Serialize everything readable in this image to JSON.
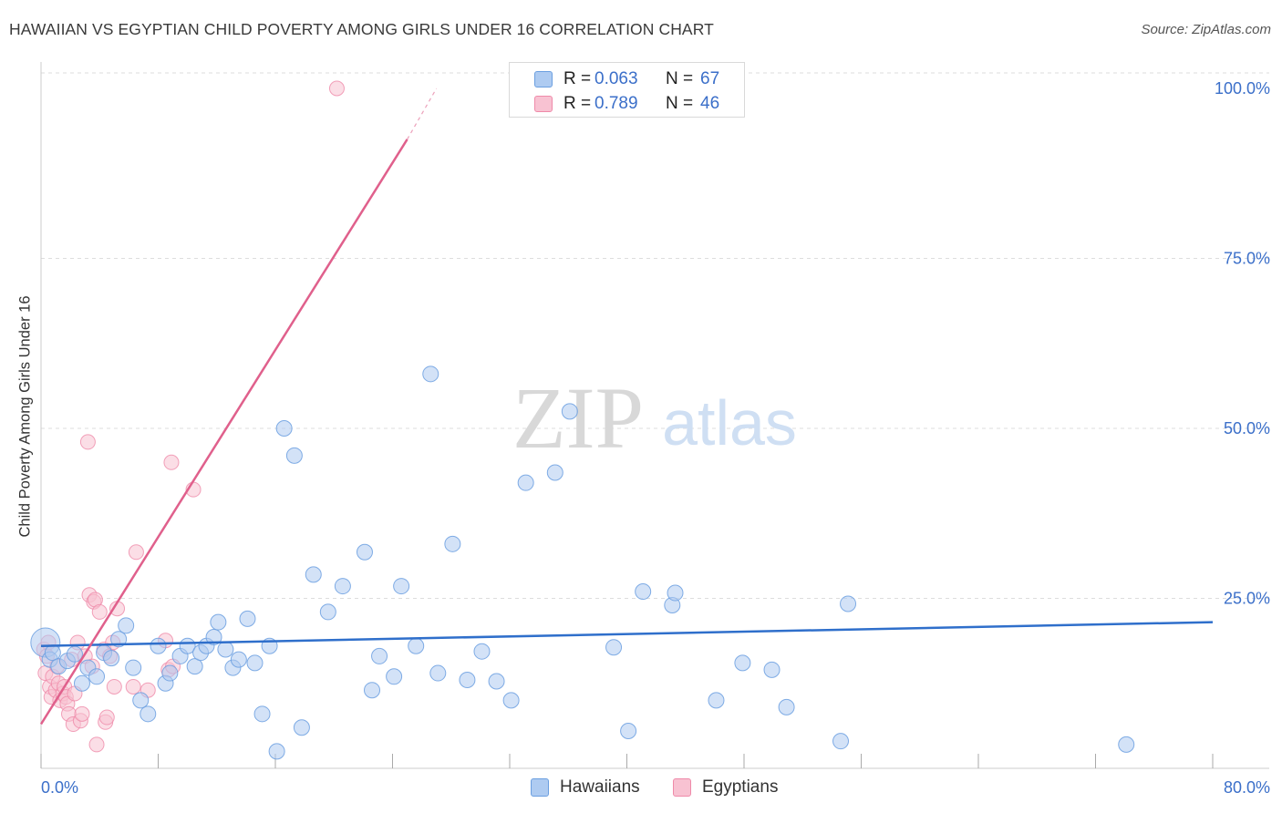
{
  "header": {
    "title": "HAWAIIAN VS EGYPTIAN CHILD POVERTY AMONG GIRLS UNDER 16 CORRELATION CHART",
    "source": "Source: ZipAtlas.com"
  },
  "watermark": {
    "zip": "ZIP",
    "atlas": "atlas"
  },
  "legend": {
    "rows": [
      {
        "r_label": "R =",
        "r_value": "0.063",
        "n_label": "N =",
        "n_value": "67",
        "color": "#8fb4ea"
      },
      {
        "r_label": "R =",
        "r_value": "0.789",
        "n_label": "N =",
        "n_value": "46",
        "color": "#f4a3bc"
      }
    ]
  },
  "bottom_legend": {
    "series_a": "Hawaiians",
    "series_b": "Egyptians"
  },
  "colors": {
    "hawaiians_fill": "#aecbf1",
    "hawaiians_stroke": "#6b9fe0",
    "hawaiians_line": "#2f6fcb",
    "egyptians_fill": "#f8c2d2",
    "egyptians_stroke": "#ef8aa9",
    "egyptians_line": "#e0608c",
    "tick_label": "#3b6fc9",
    "grid": "#dddddd"
  },
  "chart_data": {
    "type": "scatter",
    "title": "HAWAIIAN VS EGYPTIAN CHILD POVERTY AMONG GIRLS UNDER 16 CORRELATION CHART",
    "xlabel": "",
    "ylabel": "Child Poverty Among Girls Under 16",
    "xlim": [
      0,
      80
    ],
    "ylim": [
      0,
      100
    ],
    "x_tick_labels": [
      "0.0%",
      "80.0%"
    ],
    "y_ticks": [
      25,
      50,
      75,
      100
    ],
    "y_tick_labels": [
      "25.0%",
      "50.0%",
      "75.0%",
      "100.0%"
    ],
    "grid": "horizontal dashed",
    "legend_position": "top-center",
    "series": [
      {
        "name": "Hawaiians",
        "r": 0.063,
        "n": 67,
        "trend": {
          "x": [
            0,
            80
          ],
          "y": [
            18.0,
            21.5
          ]
        },
        "points": [
          [
            0.3,
            18.5
          ],
          [
            0.6,
            16.0
          ],
          [
            0.8,
            17.0
          ],
          [
            1.2,
            15.0
          ],
          [
            1.8,
            15.8
          ],
          [
            2.3,
            16.8
          ],
          [
            2.8,
            12.5
          ],
          [
            3.2,
            14.8
          ],
          [
            3.8,
            13.5
          ],
          [
            4.3,
            17.0
          ],
          [
            4.8,
            16.2
          ],
          [
            5.3,
            19.0
          ],
          [
            5.8,
            21.0
          ],
          [
            6.3,
            14.8
          ],
          [
            6.8,
            10.0
          ],
          [
            7.3,
            8.0
          ],
          [
            8.0,
            18.0
          ],
          [
            8.5,
            12.5
          ],
          [
            8.8,
            14.0
          ],
          [
            9.5,
            16.5
          ],
          [
            10.0,
            18.0
          ],
          [
            10.5,
            15.0
          ],
          [
            10.9,
            17.0
          ],
          [
            11.3,
            18.0
          ],
          [
            11.8,
            19.3
          ],
          [
            12.1,
            21.5
          ],
          [
            12.6,
            17.5
          ],
          [
            13.1,
            14.8
          ],
          [
            13.5,
            16.0
          ],
          [
            14.1,
            22.0
          ],
          [
            14.6,
            15.5
          ],
          [
            15.1,
            8.0
          ],
          [
            15.6,
            18.0
          ],
          [
            16.1,
            2.5
          ],
          [
            16.6,
            50.0
          ],
          [
            17.3,
            46.0
          ],
          [
            17.8,
            6.0
          ],
          [
            18.6,
            28.5
          ],
          [
            19.6,
            23.0
          ],
          [
            20.6,
            26.8
          ],
          [
            22.1,
            31.8
          ],
          [
            22.6,
            11.5
          ],
          [
            23.1,
            16.5
          ],
          [
            24.1,
            13.5
          ],
          [
            24.6,
            26.8
          ],
          [
            25.6,
            18.0
          ],
          [
            26.6,
            58.0
          ],
          [
            27.1,
            14.0
          ],
          [
            28.1,
            33.0
          ],
          [
            29.1,
            13.0
          ],
          [
            30.1,
            17.2
          ],
          [
            31.1,
            12.8
          ],
          [
            32.1,
            10.0
          ],
          [
            33.1,
            42.0
          ],
          [
            35.1,
            43.5
          ],
          [
            36.1,
            52.5
          ],
          [
            39.1,
            17.8
          ],
          [
            40.1,
            5.5
          ],
          [
            41.1,
            26.0
          ],
          [
            43.1,
            24.0
          ],
          [
            43.3,
            25.8
          ],
          [
            46.1,
            10.0
          ],
          [
            47.9,
            15.5
          ],
          [
            49.9,
            14.5
          ],
          [
            50.9,
            9.0
          ],
          [
            54.6,
            4.0
          ],
          [
            55.1,
            24.2
          ],
          [
            74.1,
            3.5
          ]
        ]
      },
      {
        "name": "Egyptians",
        "r": 0.789,
        "n": 46,
        "trend": {
          "x": [
            0,
            25
          ],
          "y": [
            6.5,
            92.5
          ]
        },
        "trend_dashed": {
          "x": [
            25,
            27
          ],
          "y": [
            92.5,
            100
          ]
        },
        "points": [
          [
            0.2,
            17.5
          ],
          [
            0.3,
            14.0
          ],
          [
            0.4,
            16.5
          ],
          [
            0.5,
            18.5
          ],
          [
            0.6,
            12.0
          ],
          [
            0.7,
            10.5
          ],
          [
            0.8,
            13.5
          ],
          [
            1.0,
            11.5
          ],
          [
            1.1,
            15.0
          ],
          [
            1.2,
            12.5
          ],
          [
            1.3,
            10.0
          ],
          [
            1.5,
            11.0
          ],
          [
            1.6,
            12.0
          ],
          [
            1.7,
            10.5
          ],
          [
            1.8,
            9.5
          ],
          [
            1.9,
            8.0
          ],
          [
            2.1,
            16.0
          ],
          [
            2.2,
            6.5
          ],
          [
            2.3,
            11.0
          ],
          [
            2.5,
            18.5
          ],
          [
            2.7,
            7.0
          ],
          [
            2.8,
            8.0
          ],
          [
            3.0,
            16.5
          ],
          [
            3.2,
            48.0
          ],
          [
            3.3,
            25.5
          ],
          [
            3.5,
            15.0
          ],
          [
            3.6,
            24.5
          ],
          [
            3.7,
            24.8
          ],
          [
            3.8,
            3.5
          ],
          [
            4.0,
            23.0
          ],
          [
            4.3,
            17.5
          ],
          [
            4.4,
            6.8
          ],
          [
            4.5,
            7.5
          ],
          [
            4.7,
            16.5
          ],
          [
            4.9,
            18.5
          ],
          [
            5.0,
            12.0
          ],
          [
            5.2,
            23.5
          ],
          [
            6.3,
            12.0
          ],
          [
            6.5,
            31.8
          ],
          [
            7.3,
            11.5
          ],
          [
            8.5,
            18.8
          ],
          [
            8.7,
            14.5
          ],
          [
            9.0,
            15.0
          ],
          [
            8.9,
            45.0
          ],
          [
            10.4,
            41.0
          ],
          [
            20.2,
            100.0
          ]
        ]
      }
    ]
  }
}
